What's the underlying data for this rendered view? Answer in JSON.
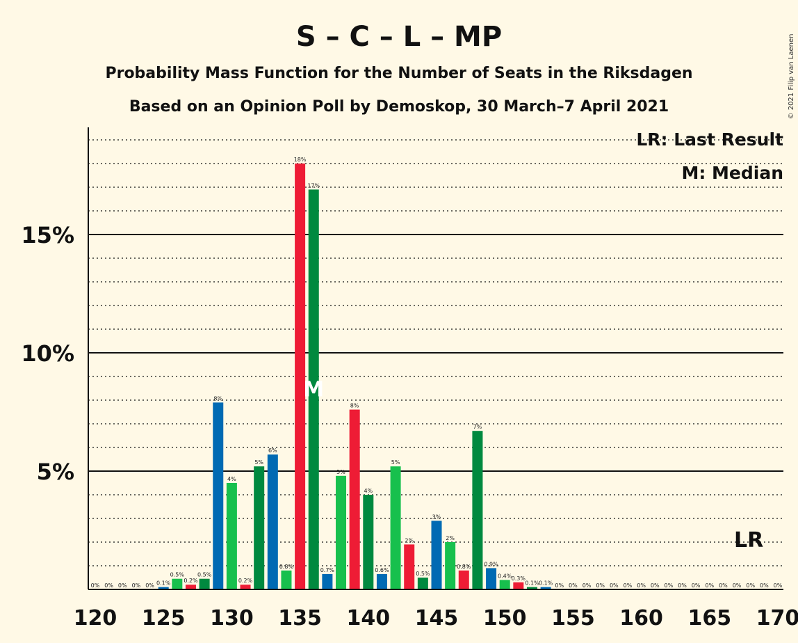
{
  "chart_data": {
    "type": "bar",
    "title": "S – C – L – MP",
    "subtitle": "Probability Mass Function for the Number of Seats in the Riksdagen",
    "subtitle2": "Based on an Opinion Poll by Demoskop, 30 March–7 April 2021",
    "copyright": "© 2021 Filip van Laenen",
    "legend": {
      "last_result": "LR: Last Result",
      "median": "M: Median",
      "placement": "top-right"
    },
    "median_seat": 136,
    "median_marker": "M",
    "last_result_seat": 167,
    "last_result_marker": "LR",
    "ylim": [
      0,
      19.5
    ],
    "y_major_ticks": [
      5,
      10,
      15
    ],
    "y_tick_labels": [
      "5%",
      "10%",
      "15%"
    ],
    "x_ticks": [
      120,
      125,
      130,
      135,
      140,
      145,
      150,
      155,
      160,
      165,
      170
    ],
    "x_tick_labels": [
      "120",
      "125",
      "130",
      "135",
      "140",
      "145",
      "150",
      "155",
      "160",
      "165",
      "170"
    ],
    "grid": "dotted minor every 1%, solid major every 5%",
    "colors": [
      "#00893f",
      "#006ab3",
      "#17c04d",
      "#ee1c35"
    ],
    "bars": [
      {
        "seats": 120,
        "value": 0,
        "label": "0%"
      },
      {
        "seats": 121,
        "value": 0,
        "label": "0%"
      },
      {
        "seats": 122,
        "value": 0,
        "label": "0%"
      },
      {
        "seats": 123,
        "value": 0,
        "label": "0%"
      },
      {
        "seats": 124,
        "value": 0,
        "label": "0%"
      },
      {
        "seats": 125,
        "value": 0.1,
        "label": "0.1%"
      },
      {
        "seats": 126,
        "value": 0.45,
        "label": "0.5%"
      },
      {
        "seats": 127,
        "value": 0.2,
        "label": "0.2%"
      },
      {
        "seats": 128,
        "value": 0.45,
        "label": "0.5%"
      },
      {
        "seats": 129,
        "value": 7.9,
        "label": "8%"
      },
      {
        "seats": 130,
        "value": 4.5,
        "label": "4%"
      },
      {
        "seats": 131,
        "value": 0.2,
        "label": "0.2%"
      },
      {
        "seats": 132,
        "value": 5.2,
        "label": "5%"
      },
      {
        "seats": 133,
        "value": 5.7,
        "label": "6%"
      },
      {
        "seats": 134,
        "value": 0.8,
        "label": "0.8%"
      },
      {
        "seats": 135,
        "value": 18.0,
        "label": "18%"
      },
      {
        "seats": 136,
        "value": 16.9,
        "label": "17%"
      },
      {
        "seats": 137,
        "value": 0.65,
        "label": "0.7%"
      },
      {
        "seats": 138,
        "value": 4.8,
        "label": "5%"
      },
      {
        "seats": 139,
        "value": 7.6,
        "label": "8%"
      },
      {
        "seats": 140,
        "value": 4.0,
        "label": "4%"
      },
      {
        "seats": 141,
        "value": 0.65,
        "label": "0.6%"
      },
      {
        "seats": 142,
        "value": 5.2,
        "label": "5%"
      },
      {
        "seats": 143,
        "value": 1.9,
        "label": "2%"
      },
      {
        "seats": 144,
        "value": 0.5,
        "label": "0.5%"
      },
      {
        "seats": 145,
        "value": 2.9,
        "label": "3%"
      },
      {
        "seats": 146,
        "value": 2.0,
        "label": "2%"
      },
      {
        "seats": 147,
        "value": 0.8,
        "label": "0.8%"
      },
      {
        "seats": 148,
        "value": 6.7,
        "label": "7%"
      },
      {
        "seats": 149,
        "value": 0.9,
        "label": "0.9%"
      },
      {
        "seats": 150,
        "value": 0.4,
        "label": "0.4%"
      },
      {
        "seats": 151,
        "value": 0.3,
        "label": "0.3%"
      },
      {
        "seats": 152,
        "value": 0.1,
        "label": "0.1%"
      },
      {
        "seats": 153,
        "value": 0.1,
        "label": "0.1%"
      },
      {
        "seats": 154,
        "value": 0,
        "label": "0%"
      },
      {
        "seats": 155,
        "value": 0,
        "label": "0%"
      },
      {
        "seats": 156,
        "value": 0,
        "label": "0%"
      },
      {
        "seats": 157,
        "value": 0,
        "label": "0%"
      },
      {
        "seats": 158,
        "value": 0,
        "label": "0%"
      },
      {
        "seats": 159,
        "value": 0,
        "label": "0%"
      },
      {
        "seats": 160,
        "value": 0,
        "label": "0%"
      },
      {
        "seats": 161,
        "value": 0,
        "label": "0%"
      },
      {
        "seats": 162,
        "value": 0,
        "label": "0%"
      },
      {
        "seats": 163,
        "value": 0,
        "label": "0%"
      },
      {
        "seats": 164,
        "value": 0,
        "label": "0%"
      },
      {
        "seats": 165,
        "value": 0,
        "label": "0%"
      },
      {
        "seats": 166,
        "value": 0,
        "label": "0%"
      },
      {
        "seats": 167,
        "value": 0,
        "label": "0%"
      },
      {
        "seats": 168,
        "value": 0,
        "label": "0%"
      },
      {
        "seats": 169,
        "value": 0,
        "label": "0%"
      },
      {
        "seats": 170,
        "value": 0,
        "label": "0%"
      }
    ]
  }
}
